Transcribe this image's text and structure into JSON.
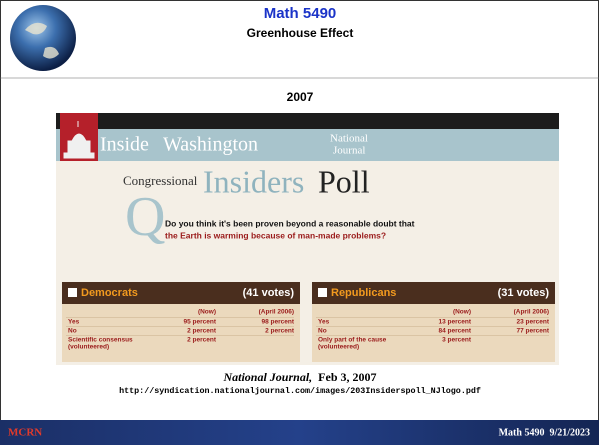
{
  "header": {
    "title": "Math 5490",
    "subtitle": "Greenhouse Effect"
  },
  "year": "2007",
  "poll": {
    "banner_left": "Inside",
    "banner_right": "Washington",
    "logo": [
      "National",
      "Journal"
    ],
    "subheading": {
      "pre": "Congressional",
      "main": "Insiders",
      "end": "Poll"
    },
    "q_letter": "Q",
    "question": [
      "Do you think it's been proven beyond a reasonable doubt that",
      "the Earth is warming because of man-made problems?"
    ],
    "tables": [
      {
        "party": "Democrats",
        "votes": "(41 votes)",
        "columns": [
          "(Now)",
          "(April 2006)"
        ],
        "rows": [
          {
            "label": [
              "Yes"
            ],
            "values": [
              "95 percent",
              "98 percent"
            ]
          },
          {
            "label": [
              "No"
            ],
            "values": [
              "2 percent",
              "2 percent"
            ]
          },
          {
            "label": [
              "Scientific consensus",
              "(volunteered)"
            ],
            "values": [
              "2 percent"
            ]
          }
        ]
      },
      {
        "party": "Republicans",
        "votes": "(31 votes)",
        "columns": [
          "(Now)",
          "(April 2006)"
        ],
        "rows": [
          {
            "label": [
              "Yes"
            ],
            "values": [
              "13 percent",
              "23 percent"
            ]
          },
          {
            "label": [
              "No"
            ],
            "values": [
              "84 percent",
              "77 percent"
            ]
          },
          {
            "label": [
              "Only part of the cause",
              "(volunteered)"
            ],
            "values": [
              "3 percent"
            ]
          }
        ]
      }
    ]
  },
  "caption": {
    "source": "National Journal,",
    "date": "Feb 3, 2007"
  },
  "url": "http://syndication.nationaljournal.com/images/203Insiderspoll_NJlogo.pdf",
  "footer": {
    "logo": "MCRN",
    "text": "Math 5490  9/21/2023"
  }
}
